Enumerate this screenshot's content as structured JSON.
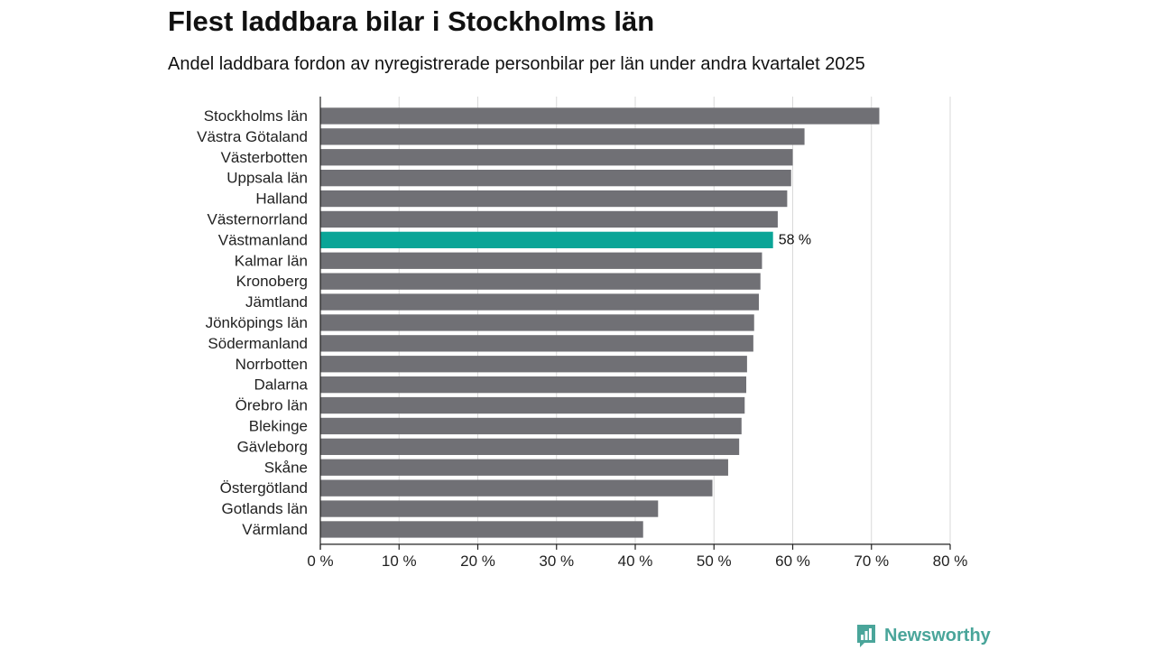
{
  "title": "Flest laddbara bilar i Stockholms län",
  "subtitle": "Andel laddbara fordon av nyregistrerade personbilar per län under andra kvartalet 2025",
  "brand": {
    "name": "Newsworthy",
    "icon": "newsworthy-logo-icon",
    "color": "#4aa59a"
  },
  "colors": {
    "bar": "#707075",
    "highlight": "#0aa597",
    "grid": "#d9d9d9",
    "axis": "#222222"
  },
  "chart_data": {
    "type": "bar",
    "orientation": "horizontal",
    "categories": [
      "Stockholms län",
      "Västra Götaland",
      "Västerbotten",
      "Uppsala län",
      "Halland",
      "Västernorrland",
      "Västmanland",
      "Kalmar län",
      "Kronoberg",
      "Jämtland",
      "Jönköpings län",
      "Södermanland",
      "Norrbotten",
      "Dalarna",
      "Örebro län",
      "Blekinge",
      "Gävleborg",
      "Skåne",
      "Östergötland",
      "Gotlands län",
      "Värmland"
    ],
    "values": [
      71.0,
      61.5,
      60.0,
      59.8,
      59.3,
      58.1,
      57.5,
      56.1,
      55.9,
      55.7,
      55.1,
      55.0,
      54.2,
      54.1,
      53.9,
      53.5,
      53.2,
      51.8,
      49.8,
      42.9,
      41.0
    ],
    "highlight_index": 6,
    "data_labels": [
      {
        "index": 6,
        "text": "58 %"
      }
    ],
    "xlim": [
      0,
      80
    ],
    "xticks": [
      0,
      10,
      20,
      30,
      40,
      50,
      60,
      70,
      80
    ],
    "xtick_labels": [
      "0 %",
      "10 %",
      "20 %",
      "30 %",
      "40 %",
      "50 %",
      "60 %",
      "70 %",
      "80 %"
    ],
    "xlabel": "",
    "ylabel": "",
    "grid": "vertical",
    "legend": "none"
  }
}
